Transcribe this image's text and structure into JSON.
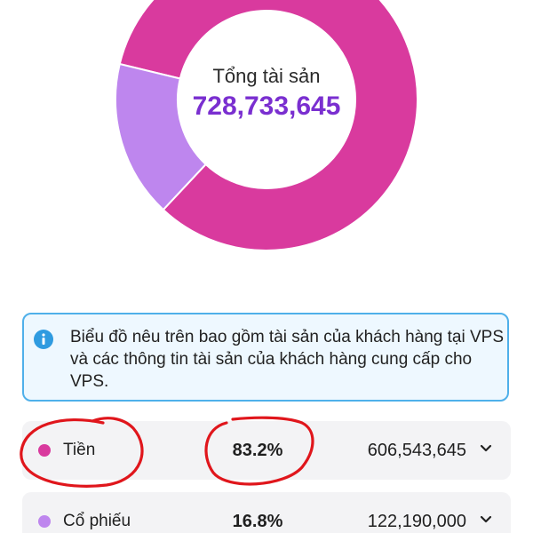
{
  "portfolio": {
    "total_label": "Tổng tài sản",
    "total_value": "728,733,645"
  },
  "chart_data": {
    "type": "pie",
    "categories": [
      "Tiền",
      "Cổ phiếu"
    ],
    "values": [
      83.2,
      16.8
    ],
    "colors": [
      "#d93a9e",
      "#be86ee"
    ]
  },
  "info_note": {
    "icon": "info-icon",
    "text": "Biểu đồ nêu trên bao gồm tài sản của khách hàng tại VPS và các thông tin tài sản của khách hàng cung cấp cho VPS."
  },
  "assets": [
    {
      "name": "Tiền",
      "percent": "83.2%",
      "amount": "606,543,645",
      "color": "#d93a9e"
    },
    {
      "name": "Cổ phiếu",
      "percent": "16.8%",
      "amount": "122,190,000",
      "color": "#be86ee"
    }
  ],
  "colors": {
    "accent_purple": "#7a2fd0",
    "info_border": "#4fb0ea",
    "info_background": "#eef8ff",
    "annotation_red": "#e0161c"
  }
}
